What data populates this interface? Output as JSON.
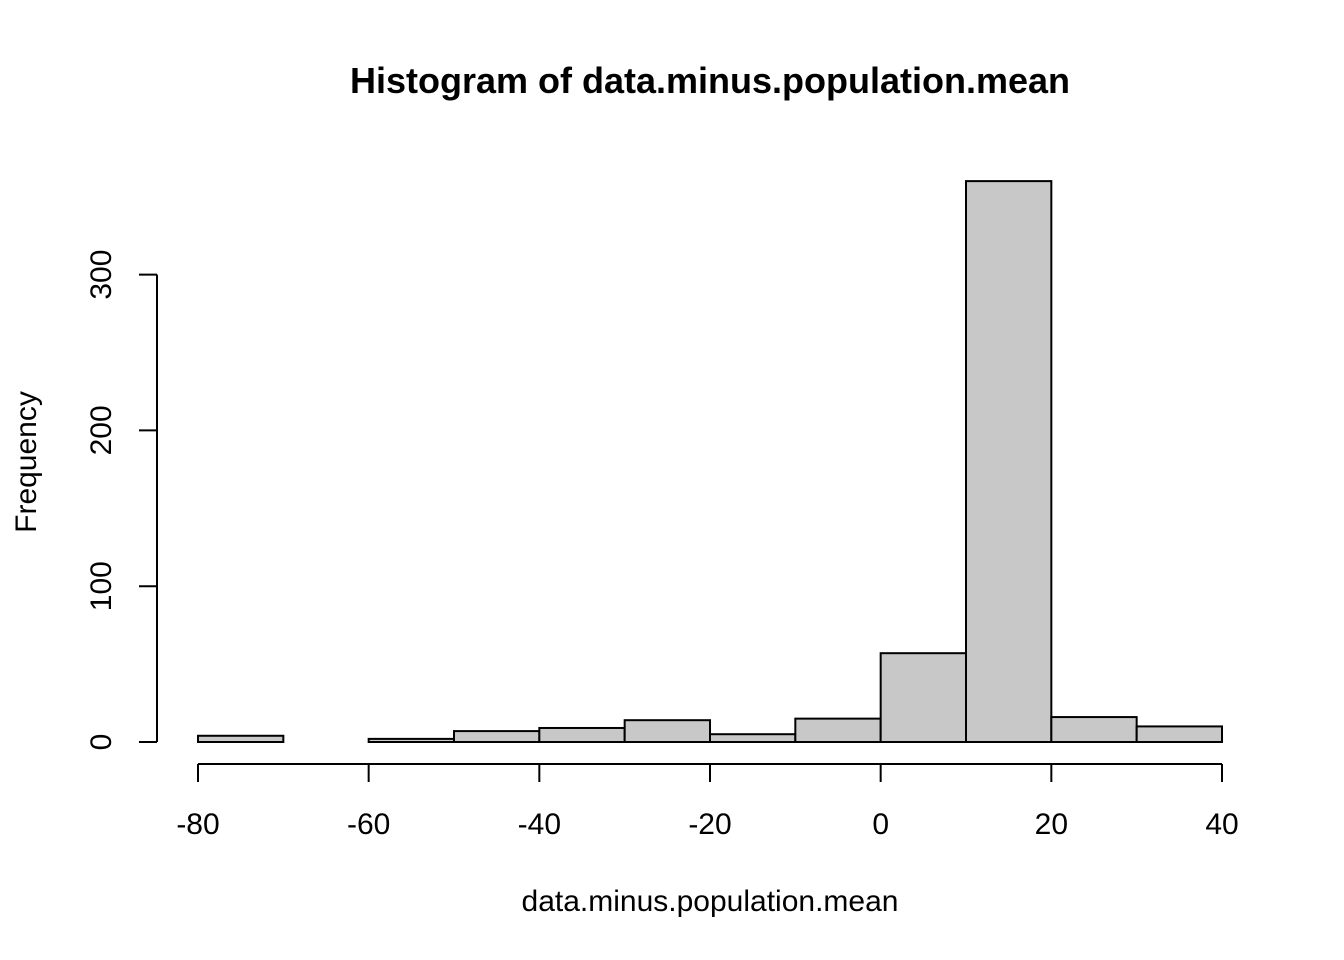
{
  "chart_data": {
    "type": "bar",
    "subtype": "histogram",
    "title": "Histogram of data.minus.population.mean",
    "xlabel": "data.minus.population.mean",
    "ylabel": "Frequency",
    "bins": [
      {
        "from": -80,
        "to": -70,
        "count": 4
      },
      {
        "from": -70,
        "to": -60,
        "count": 0
      },
      {
        "from": -60,
        "to": -50,
        "count": 2
      },
      {
        "from": -50,
        "to": -40,
        "count": 7
      },
      {
        "from": -40,
        "to": -30,
        "count": 9
      },
      {
        "from": -30,
        "to": -20,
        "count": 14
      },
      {
        "from": -20,
        "to": -10,
        "count": 5
      },
      {
        "from": -10,
        "to": 0,
        "count": 15
      },
      {
        "from": 0,
        "to": 10,
        "count": 57
      },
      {
        "from": 10,
        "to": 20,
        "count": 360
      },
      {
        "from": 20,
        "to": 30,
        "count": 16
      },
      {
        "from": 30,
        "to": 40,
        "count": 10
      }
    ],
    "xlim": [
      -80,
      40
    ],
    "ylim": [
      0,
      360
    ],
    "xticks": [
      -80,
      -60,
      -40,
      -20,
      0,
      20,
      40
    ],
    "yticks": [
      0,
      100,
      200,
      300
    ],
    "grid": false,
    "colors": {
      "bar_fill": "#c8c8c8",
      "bar_stroke": "#000000",
      "axis": "#000000",
      "background": "#ffffff"
    }
  }
}
